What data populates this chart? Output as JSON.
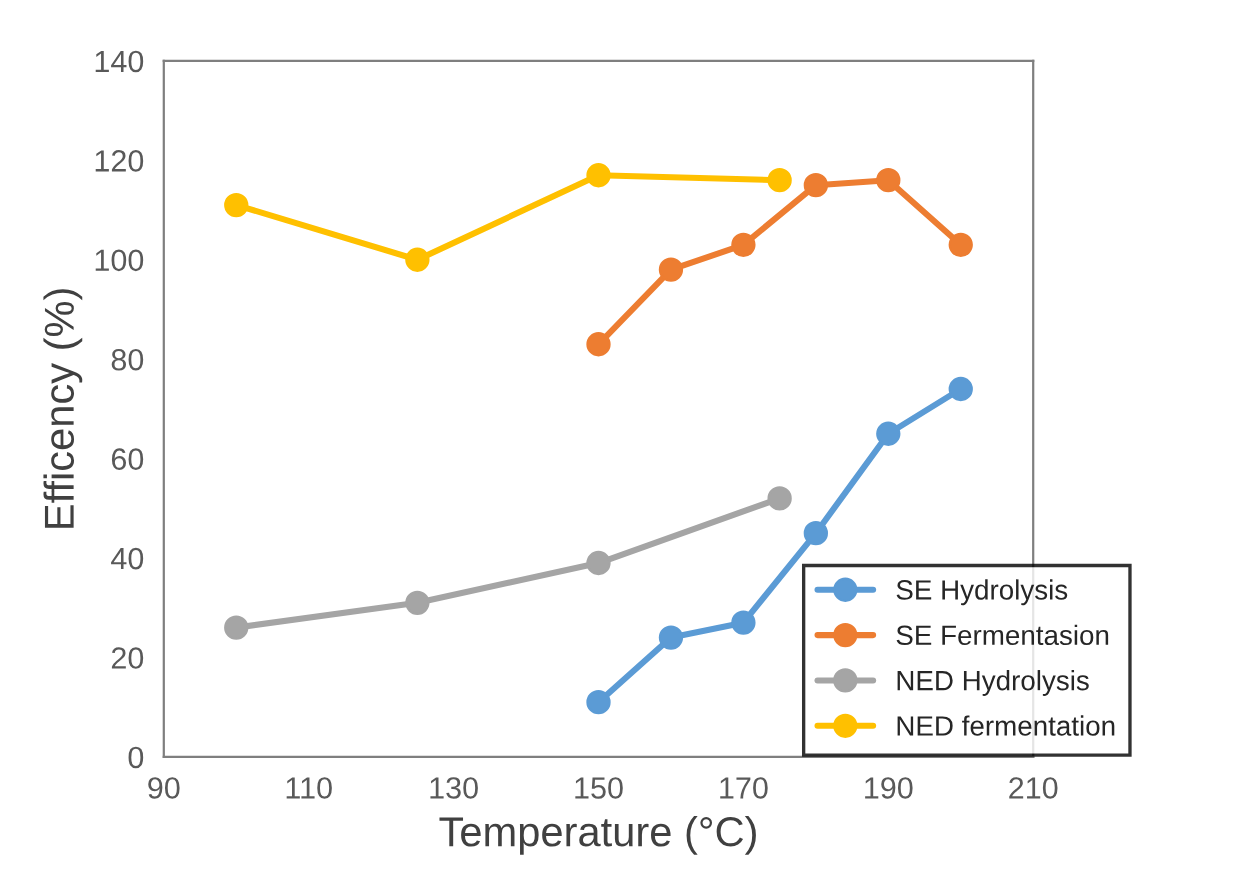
{
  "chart_data": {
    "type": "line",
    "xlabel": "Temperature (°C)",
    "ylabel": "Efficency (%)",
    "xlim": [
      90,
      210
    ],
    "xticks": [
      90,
      110,
      130,
      150,
      170,
      190,
      210
    ],
    "ylim": [
      0,
      140
    ],
    "yticks": [
      0,
      20,
      40,
      60,
      80,
      100,
      120,
      140
    ],
    "grid": false,
    "legend": "bottom right",
    "marker": "circle",
    "line_style": "solid",
    "series": [
      {
        "name": "SE Hydrolysis",
        "color": "#5b9bd5",
        "x": [
          150,
          160,
          170,
          180,
          190,
          200
        ],
        "values": [
          11,
          24,
          27,
          45,
          65,
          74
        ]
      },
      {
        "name": "SE Fermentasion",
        "color": "#ed7d31",
        "x": [
          150,
          160,
          170,
          180,
          190,
          200
        ],
        "values": [
          83,
          98,
          103,
          115,
          116,
          103
        ]
      },
      {
        "name": "NED Hydrolysis",
        "color": "#a5a5a5",
        "x": [
          100,
          125,
          150,
          175
        ],
        "values": [
          26,
          31,
          39,
          52
        ]
      },
      {
        "name": "NED fermentation",
        "color": "#ffc000",
        "x": [
          100,
          125,
          150,
          175
        ],
        "values": [
          111,
          100,
          117,
          116
        ]
      }
    ]
  }
}
